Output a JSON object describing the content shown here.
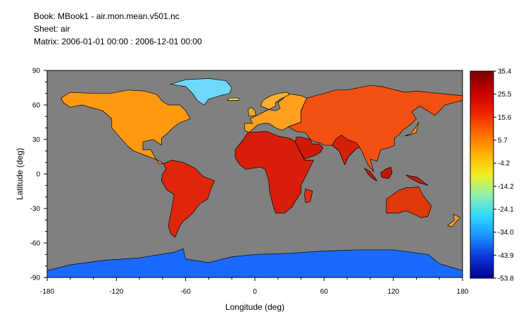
{
  "header": {
    "book": "Book: MBook1 - air.mon.mean.v501.nc",
    "sheet": "Sheet: air",
    "matrix": "Matrix: 2006-01-01 00:00 : 2006-12-01 00:00"
  },
  "chart_data": {
    "type": "heatmap",
    "title": "",
    "xlabel": "Longitude (deg)",
    "ylabel": "Latitude (deg)",
    "xlim": [
      -180,
      180
    ],
    "ylim": [
      -90,
      90
    ],
    "xticks": [
      "-180",
      "-120",
      "-60",
      "0",
      "60",
      "120",
      "180"
    ],
    "yticks": [
      "90",
      "60",
      "30",
      "0",
      "-30",
      "-60",
      "-90"
    ],
    "grid": false,
    "ocean_color": "#808080",
    "colorbar": {
      "position": "right",
      "range": [
        -53.8,
        35.4
      ],
      "tick_labels": [
        "35.4",
        "25.5",
        "15.6",
        "5.7",
        "-4.2",
        "-14.2",
        "-24.1",
        "-34.0",
        "-43.9",
        "-53.8"
      ],
      "colors": [
        "#7a0000",
        "#c40000",
        "#ee2200",
        "#ff6a00",
        "#ffb000",
        "#f0f020",
        "#8ff0b0",
        "#30d8ff",
        "#1a8fff",
        "#0a35d8",
        "#00008c"
      ]
    },
    "regions": [
      {
        "name": "North America",
        "color": "#ff9a10",
        "outline": [
          [
            -168,
            66
          ],
          [
            -160,
            71
          ],
          [
            -140,
            70
          ],
          [
            -125,
            70
          ],
          [
            -110,
            73
          ],
          [
            -95,
            72
          ],
          [
            -85,
            69
          ],
          [
            -80,
            63
          ],
          [
            -75,
            60
          ],
          [
            -65,
            60
          ],
          [
            -60,
            55
          ],
          [
            -56,
            48
          ],
          [
            -66,
            44
          ],
          [
            -70,
            41
          ],
          [
            -76,
            35
          ],
          [
            -81,
            31
          ],
          [
            -81,
            25
          ],
          [
            -88,
            30
          ],
          [
            -97,
            28
          ],
          [
            -97,
            21
          ],
          [
            -90,
            21
          ],
          [
            -87,
            15
          ],
          [
            -83,
            9
          ],
          [
            -79,
            9
          ],
          [
            -84,
            12
          ],
          [
            -92,
            15
          ],
          [
            -105,
            20
          ],
          [
            -110,
            24
          ],
          [
            -117,
            32
          ],
          [
            -124,
            40
          ],
          [
            -124,
            48
          ],
          [
            -132,
            55
          ],
          [
            -150,
            60
          ],
          [
            -160,
            58
          ],
          [
            -166,
            62
          ]
        ]
      },
      {
        "name": "South America",
        "color": "#e0260a",
        "outline": [
          [
            -79,
            9
          ],
          [
            -72,
            12
          ],
          [
            -62,
            10
          ],
          [
            -52,
            5
          ],
          [
            -45,
            -2
          ],
          [
            -35,
            -6
          ],
          [
            -38,
            -13
          ],
          [
            -41,
            -22
          ],
          [
            -48,
            -26
          ],
          [
            -53,
            -33
          ],
          [
            -58,
            -38
          ],
          [
            -62,
            -41
          ],
          [
            -65,
            -45
          ],
          [
            -67,
            -50
          ],
          [
            -69,
            -55
          ],
          [
            -73,
            -52
          ],
          [
            -75,
            -45
          ],
          [
            -73,
            -35
          ],
          [
            -71,
            -25
          ],
          [
            -70,
            -18
          ],
          [
            -76,
            -14
          ],
          [
            -81,
            -6
          ],
          [
            -80,
            0
          ],
          [
            -77,
            4
          ]
        ]
      },
      {
        "name": "Africa",
        "color": "#d81e0a",
        "outline": [
          [
            -17,
            21
          ],
          [
            -10,
            30
          ],
          [
            -6,
            36
          ],
          [
            10,
            37
          ],
          [
            20,
            33
          ],
          [
            30,
            31
          ],
          [
            32,
            30
          ],
          [
            35,
            28
          ],
          [
            43,
            12
          ],
          [
            51,
            12
          ],
          [
            46,
            2
          ],
          [
            40,
            -10
          ],
          [
            40,
            -16
          ],
          [
            35,
            -24
          ],
          [
            32,
            -29
          ],
          [
            26,
            -34
          ],
          [
            18,
            -34
          ],
          [
            16,
            -28
          ],
          [
            13,
            -17
          ],
          [
            12,
            -6
          ],
          [
            9,
            4
          ],
          [
            5,
            6
          ],
          [
            -8,
            4
          ],
          [
            -13,
            8
          ],
          [
            -17,
            14
          ]
        ]
      },
      {
        "name": "Europe",
        "color": "#ffa020",
        "outline": [
          [
            -9,
            38
          ],
          [
            -9,
            44
          ],
          [
            -2,
            44
          ],
          [
            -4,
            48
          ],
          [
            2,
            51
          ],
          [
            8,
            54
          ],
          [
            12,
            56
          ],
          [
            18,
            55
          ],
          [
            22,
            57
          ],
          [
            20,
            62
          ],
          [
            25,
            66
          ],
          [
            28,
            70
          ],
          [
            40,
            68
          ],
          [
            45,
            66
          ],
          [
            40,
            55
          ],
          [
            40,
            45
          ],
          [
            29,
            41
          ],
          [
            24,
            38
          ],
          [
            18,
            40
          ],
          [
            12,
            44
          ],
          [
            8,
            44
          ],
          [
            3,
            43
          ],
          [
            -5,
            36
          ]
        ]
      },
      {
        "name": "Scandinavia",
        "color": "#ffb030",
        "outline": [
          [
            5,
            59
          ],
          [
            7,
            64
          ],
          [
            14,
            68
          ],
          [
            20,
            70
          ],
          [
            28,
            71
          ],
          [
            30,
            69
          ],
          [
            22,
            65
          ],
          [
            18,
            62
          ],
          [
            18,
            59
          ],
          [
            12,
            56
          ],
          [
            8,
            58
          ]
        ]
      },
      {
        "name": "Asia",
        "color": "#f25010",
        "outline": [
          [
            45,
            66
          ],
          [
            60,
            70
          ],
          [
            70,
            73
          ],
          [
            80,
            73
          ],
          [
            100,
            77
          ],
          [
            110,
            76
          ],
          [
            130,
            71
          ],
          [
            140,
            72
          ],
          [
            160,
            70
          ],
          [
            180,
            68
          ],
          [
            180,
            64
          ],
          [
            165,
            60
          ],
          [
            160,
            55
          ],
          [
            156,
            51
          ],
          [
            143,
            59
          ],
          [
            136,
            54
          ],
          [
            140,
            48
          ],
          [
            135,
            43
          ],
          [
            128,
            38
          ],
          [
            126,
            35
          ],
          [
            121,
            31
          ],
          [
            121,
            25
          ],
          [
            117,
            23
          ],
          [
            109,
            21
          ],
          [
            106,
            11
          ],
          [
            100,
            13
          ],
          [
            103,
            2
          ],
          [
            98,
            8
          ],
          [
            94,
            17
          ],
          [
            91,
            23
          ],
          [
            88,
            22
          ],
          [
            81,
            15
          ],
          [
            78,
            8
          ],
          [
            73,
            20
          ],
          [
            67,
            25
          ],
          [
            60,
            25
          ],
          [
            57,
            27
          ],
          [
            52,
            28
          ],
          [
            48,
            30
          ],
          [
            44,
            36
          ],
          [
            36,
            37
          ],
          [
            29,
            41
          ],
          [
            40,
            45
          ],
          [
            40,
            55
          ]
        ]
      },
      {
        "name": "Arabia",
        "color": "#cf1a08",
        "outline": [
          [
            35,
            28
          ],
          [
            38,
            22
          ],
          [
            43,
            13
          ],
          [
            52,
            16
          ],
          [
            57,
            19
          ],
          [
            59,
            23
          ],
          [
            56,
            26
          ],
          [
            50,
            26
          ],
          [
            48,
            30
          ],
          [
            40,
            32
          ],
          [
            36,
            32
          ]
        ]
      },
      {
        "name": "India",
        "color": "#d42008",
        "outline": [
          [
            67,
            25
          ],
          [
            73,
            20
          ],
          [
            78,
            8
          ],
          [
            81,
            15
          ],
          [
            88,
            22
          ],
          [
            91,
            23
          ],
          [
            88,
            27
          ],
          [
            80,
            30
          ],
          [
            75,
            34
          ],
          [
            70,
            30
          ]
        ]
      },
      {
        "name": "Australia",
        "color": "#e03a0a",
        "outline": [
          [
            114,
            -22
          ],
          [
            114,
            -34
          ],
          [
            124,
            -34
          ],
          [
            131,
            -32
          ],
          [
            138,
            -35
          ],
          [
            144,
            -38
          ],
          [
            150,
            -37
          ],
          [
            153,
            -28
          ],
          [
            146,
            -19
          ],
          [
            142,
            -11
          ],
          [
            136,
            -12
          ],
          [
            131,
            -12
          ],
          [
            125,
            -14
          ]
        ]
      },
      {
        "name": "Greenland",
        "color": "#70d8ff",
        "outline": [
          [
            -73,
            78
          ],
          [
            -60,
            82
          ],
          [
            -40,
            83
          ],
          [
            -25,
            81
          ],
          [
            -20,
            75
          ],
          [
            -22,
            70
          ],
          [
            -30,
            68
          ],
          [
            -40,
            65
          ],
          [
            -44,
            60
          ],
          [
            -50,
            64
          ],
          [
            -54,
            70
          ],
          [
            -60,
            76
          ]
        ]
      },
      {
        "name": "Antarctica",
        "color": "#1a6aff",
        "outline": [
          [
            -180,
            -84
          ],
          [
            -180,
            -90
          ],
          [
            180,
            -90
          ],
          [
            180,
            -84
          ],
          [
            160,
            -78
          ],
          [
            150,
            -70
          ],
          [
            120,
            -66
          ],
          [
            90,
            -66
          ],
          [
            60,
            -67
          ],
          [
            30,
            -69
          ],
          [
            0,
            -70
          ],
          [
            -20,
            -72
          ],
          [
            -40,
            -77
          ],
          [
            -60,
            -74
          ],
          [
            -62,
            -65
          ],
          [
            -70,
            -68
          ],
          [
            -100,
            -73
          ],
          [
            -130,
            -75
          ],
          [
            -160,
            -79
          ]
        ]
      },
      {
        "name": "Madagascar",
        "color": "#e03010",
        "outline": [
          [
            44,
            -13
          ],
          [
            50,
            -15
          ],
          [
            48,
            -24
          ],
          [
            44,
            -25
          ],
          [
            43,
            -18
          ]
        ]
      },
      {
        "name": "Borneo",
        "color": "#c41608",
        "outline": [
          [
            109,
            1
          ],
          [
            113,
            4
          ],
          [
            118,
            6
          ],
          [
            119,
            1
          ],
          [
            116,
            -4
          ],
          [
            110,
            -3
          ]
        ]
      },
      {
        "name": "Sumatra",
        "color": "#c41608",
        "outline": [
          [
            95,
            5
          ],
          [
            100,
            2
          ],
          [
            106,
            -6
          ],
          [
            102,
            -4
          ],
          [
            98,
            0
          ]
        ]
      },
      {
        "name": "New Guinea",
        "color": "#c81a08",
        "outline": [
          [
            131,
            -1
          ],
          [
            141,
            -3
          ],
          [
            150,
            -10
          ],
          [
            143,
            -8
          ],
          [
            135,
            -4
          ]
        ]
      },
      {
        "name": "Japan",
        "color": "#ff8a10",
        "outline": [
          [
            130,
            33
          ],
          [
            135,
            34
          ],
          [
            140,
            36
          ],
          [
            141,
            41
          ],
          [
            142,
            45
          ],
          [
            139,
            40
          ],
          [
            135,
            35
          ]
        ]
      },
      {
        "name": "Great Britain",
        "color": "#ffa828",
        "outline": [
          [
            -5,
            50
          ],
          [
            1,
            51
          ],
          [
            0,
            55
          ],
          [
            -3,
            58
          ],
          [
            -6,
            56
          ]
        ]
      },
      {
        "name": "Iceland",
        "color": "#ffd840",
        "outline": [
          [
            -24,
            64
          ],
          [
            -14,
            64
          ],
          [
            -14,
            66
          ],
          [
            -22,
            66
          ]
        ]
      },
      {
        "name": "New Zealand",
        "color": "#ffa020",
        "outline": [
          [
            172,
            -35
          ],
          [
            178,
            -38
          ],
          [
            174,
            -42
          ],
          [
            171,
            -46
          ],
          [
            167,
            -45
          ],
          [
            173,
            -40
          ]
        ]
      }
    ]
  }
}
